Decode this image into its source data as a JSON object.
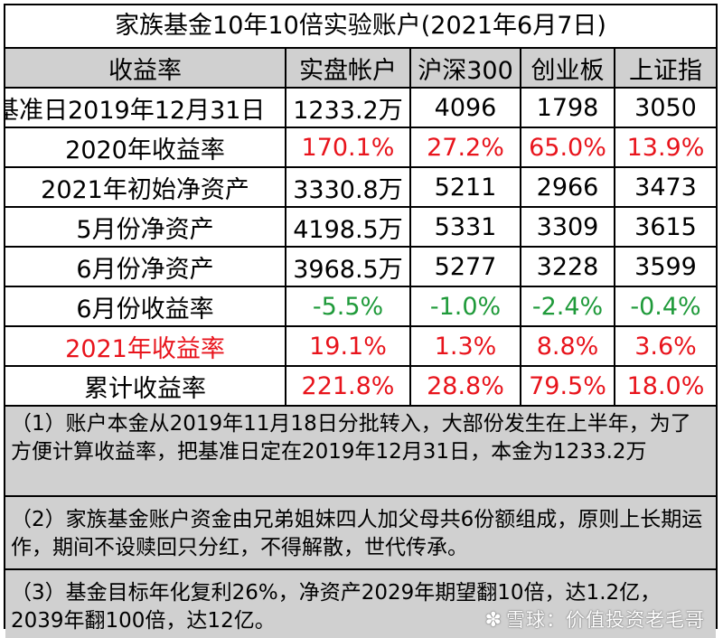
{
  "title": "家族基金10年10倍实验账户(2021年6月7日)",
  "table": {
    "headers": [
      "收益率",
      "实盘帐户",
      "沪深300",
      "创业板",
      "上证指"
    ],
    "rows": [
      {
        "label": "基准日2019年12月31日",
        "cells": [
          "1233.2万",
          "4096",
          "1798",
          "3050"
        ]
      },
      {
        "label": "2020年收益率",
        "cells": [
          "170.1%",
          "27.2%",
          "65.0%",
          "13.9%"
        ]
      },
      {
        "label": "2021年初始净资产",
        "cells": [
          "3330.8万",
          "5211",
          "2966",
          "3473"
        ]
      },
      {
        "label": "5月份净资产",
        "cells": [
          "4198.5万",
          "5331",
          "3309",
          "3615"
        ]
      },
      {
        "label": "6月份净资产",
        "cells": [
          "3968.5万",
          "5277",
          "3228",
          "3599"
        ]
      },
      {
        "label": "6月份收益率",
        "cells": [
          "-5.5%",
          "-1.0%",
          "-2.4%",
          "-0.4%"
        ]
      },
      {
        "label": "2021年收益率",
        "cells": [
          "19.1%",
          "1.3%",
          "8.8%",
          "3.6%"
        ]
      },
      {
        "label": "累计收益率",
        "cells": [
          "221.8%",
          "28.8%",
          "79.5%",
          "18.0%"
        ]
      }
    ]
  },
  "notes": [
    "（1）账户本金从2019年11月18日分批转入，大部份发生在上半年，为了方便计算收益率，把基准日定在2019年12月31日，本金为1233.2万",
    "（2）家族基金账户资金由兄弟姐妹四人加父母共6份额组成，原则上长期运作，期间不设赎回只分红，不得解散，世代传承。",
    "（3）基金目标年化复利26%，净资产2029年期望翻10倍，达1.2亿，2039年翻100倍，达12亿。"
  ],
  "watermark": "雪球：价值投资老毛哥",
  "colors": {
    "positive": "#e8141c",
    "negative": "#1f9a3a",
    "header_bg": "#d0d0d0",
    "note_bg": "#d0d0d0"
  }
}
